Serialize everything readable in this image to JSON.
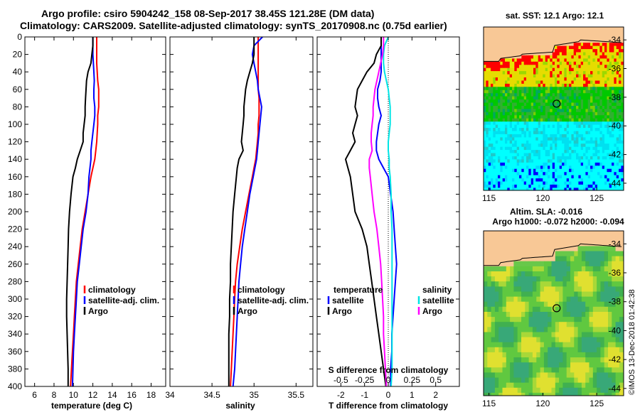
{
  "title": {
    "line1": "Argo profile: csiro 5904242_158 08-Sep-2017 38.45S 121.28E (DM data)",
    "line2": "Climatology: CARS2009. Satellite-adjusted climatology: synTS_20170908.nc (0.75d earlier)"
  },
  "colors": {
    "climatology": "#ff0000",
    "satellite": "#0000ff",
    "argo": "#000000",
    "sat_salinity": "#00e5e5",
    "argo_salinity": "#ff00ff"
  },
  "chart_data": [
    {
      "type": "line",
      "id": "temperature",
      "xlabel": "temperature (deg C)",
      "xlim": [
        5,
        19.5
      ],
      "xticks": [
        6,
        8,
        10,
        12,
        14,
        16,
        18
      ],
      "ylim": [
        400,
        0
      ],
      "yticks": [
        0,
        20,
        40,
        60,
        80,
        100,
        120,
        140,
        160,
        180,
        200,
        220,
        240,
        260,
        280,
        300,
        320,
        340,
        360,
        380,
        400
      ],
      "depth": [
        0,
        10,
        20,
        30,
        40,
        50,
        60,
        70,
        80,
        90,
        100,
        110,
        120,
        130,
        140,
        150,
        160,
        180,
        200,
        220,
        240,
        260,
        280,
        300,
        320,
        340,
        360,
        380,
        400
      ],
      "series": [
        {
          "name": "climatology",
          "color": "#ff0000",
          "values": [
            12.4,
            12.4,
            12.4,
            12.4,
            12.45,
            12.5,
            12.6,
            12.6,
            12.6,
            12.5,
            12.5,
            12.45,
            12.4,
            12.3,
            12.2,
            12.0,
            11.8,
            11.5,
            11.2,
            10.9,
            10.7,
            10.5,
            10.3,
            10.2,
            10.1,
            10.0,
            9.9,
            9.8,
            9.7
          ]
        },
        {
          "name": "satellite-adj. clim.",
          "color": "#0000ff",
          "values": [
            12.0,
            12.0,
            12.0,
            12.05,
            12.1,
            12.15,
            12.1,
            12.1,
            12.2,
            12.2,
            12.1,
            12.0,
            11.9,
            11.8,
            11.8,
            11.7,
            11.6,
            11.5,
            11.3,
            11.0,
            10.8,
            10.6,
            10.4,
            10.3,
            10.2,
            10.1,
            10.0,
            9.95,
            9.9
          ]
        },
        {
          "name": "Argo",
          "color": "#000000",
          "values": [
            12.0,
            12.0,
            11.9,
            11.8,
            11.5,
            11.35,
            11.3,
            11.25,
            11.2,
            11.2,
            11.1,
            11.0,
            11.0,
            10.7,
            10.4,
            10.2,
            9.95,
            9.75,
            9.6,
            9.5,
            9.45,
            9.4,
            9.35,
            9.3,
            9.3,
            9.35,
            9.4,
            9.45,
            9.45
          ]
        }
      ],
      "legend": [
        "climatology",
        "satellite-adj. clim.",
        "Argo"
      ]
    },
    {
      "type": "line",
      "id": "salinity",
      "xlabel": "salinity",
      "xlim": [
        34,
        35.7
      ],
      "xticks": [
        34,
        34.5,
        35,
        35.5
      ],
      "ylim": [
        400,
        0
      ],
      "depth": [
        0,
        10,
        20,
        30,
        40,
        50,
        60,
        70,
        80,
        90,
        100,
        110,
        120,
        130,
        140,
        150,
        160,
        180,
        200,
        220,
        240,
        260,
        280,
        300,
        320,
        340,
        360,
        380,
        400
      ],
      "series": [
        {
          "name": "climatology",
          "color": "#ff0000",
          "values": [
            35.05,
            35.05,
            35.05,
            35.05,
            35.05,
            35.05,
            35.05,
            35.06,
            35.06,
            35.06,
            35.05,
            35.05,
            35.04,
            35.03,
            35.02,
            35.0,
            34.98,
            34.94,
            34.9,
            34.86,
            34.83,
            34.8,
            34.78,
            34.77,
            34.76,
            34.75,
            34.74,
            34.73,
            34.72
          ]
        },
        {
          "name": "satellite-adj. clim.",
          "color": "#0000ff",
          "values": [
            35.1,
            35.0,
            34.98,
            35.0,
            35.02,
            35.04,
            35.05,
            35.07,
            35.09,
            35.08,
            35.07,
            35.06,
            35.05,
            35.04,
            35.03,
            35.01,
            34.99,
            34.95,
            34.92,
            34.89,
            34.86,
            34.84,
            34.82,
            34.81,
            34.8,
            34.79,
            34.78,
            34.77,
            34.75
          ]
        },
        {
          "name": "Argo",
          "color": "#000000",
          "values": [
            35.0,
            35.0,
            35.0,
            34.98,
            34.95,
            34.92,
            34.9,
            34.89,
            34.88,
            34.88,
            34.87,
            34.86,
            34.85,
            34.87,
            34.82,
            34.8,
            34.79,
            34.77,
            34.75,
            34.74,
            34.73,
            34.72,
            34.72,
            34.71,
            34.71,
            34.7,
            34.7,
            34.7,
            34.7
          ]
        }
      ],
      "legend": [
        "climatology",
        "satellite-adj. clim.",
        "Argo"
      ]
    },
    {
      "type": "line",
      "id": "difference",
      "xlabel": "T difference from climatology",
      "xlabel_top": "S difference from climatology",
      "xlim": [
        -3,
        3
      ],
      "xticks": [
        -2,
        -1,
        0,
        1,
        2
      ],
      "xticks_top": [
        -0.5,
        -0.25,
        0,
        0.25,
        0.5
      ],
      "ylim": [
        400,
        0
      ],
      "depth": [
        0,
        10,
        20,
        30,
        40,
        50,
        60,
        70,
        80,
        90,
        100,
        110,
        120,
        130,
        140,
        150,
        160,
        180,
        200,
        220,
        240,
        260,
        280,
        300,
        320,
        340,
        360,
        380,
        400
      ],
      "series": [
        {
          "name": "T satellite",
          "color": "#0000ff",
          "values": [
            -0.3,
            -0.3,
            -0.3,
            -0.3,
            -0.3,
            -0.35,
            -0.45,
            -0.45,
            -0.4,
            -0.3,
            -0.4,
            -0.45,
            -0.5,
            -0.5,
            -0.4,
            -0.2,
            0.0,
            0.1,
            0.2,
            0.25,
            0.3,
            0.35,
            0.3,
            0.25,
            0.2,
            0.15,
            0.15,
            0.1,
            0.1
          ]
        },
        {
          "name": "T Argo",
          "color": "#000000",
          "values": [
            -0.3,
            -0.3,
            -0.5,
            -0.6,
            -0.9,
            -1.1,
            -1.3,
            -1.35,
            -1.4,
            -1.3,
            -1.4,
            -1.5,
            -1.4,
            -1.6,
            -1.8,
            -1.7,
            -1.6,
            -1.5,
            -1.4,
            -1.1,
            -0.9,
            -0.8,
            -0.7,
            -0.6,
            -0.5,
            -0.4,
            -0.3,
            -0.2,
            -0.1
          ]
        },
        {
          "name": "S satellite",
          "color": "#00e5e5",
          "values": [
            0.0,
            -0.04,
            -0.05,
            -0.05,
            -0.04,
            -0.02,
            0.0,
            0.01,
            0.02,
            0.02,
            0.02,
            0.01,
            0.0,
            0.0,
            0.01,
            0.01,
            0.02,
            0.03,
            0.03,
            0.04,
            0.04,
            0.04,
            0.04,
            0.04,
            0.04,
            0.04,
            0.04,
            0.04,
            0.03
          ]
        },
        {
          "name": "S Argo",
          "color": "#ff00ff",
          "values": [
            -0.05,
            -0.05,
            -0.06,
            -0.08,
            -0.1,
            -0.12,
            -0.14,
            -0.15,
            -0.16,
            -0.16,
            -0.17,
            -0.18,
            -0.18,
            -0.17,
            -0.2,
            -0.2,
            -0.19,
            -0.17,
            -0.15,
            -0.12,
            -0.1,
            -0.08,
            -0.07,
            -0.06,
            -0.05,
            -0.05,
            -0.04,
            -0.03,
            -0.02
          ]
        }
      ],
      "legend_left": {
        "header": "temperature",
        "items": [
          "satellite",
          "Argo"
        ]
      },
      "legend_right": {
        "header": "salinity",
        "items": [
          "satellite",
          "Argo"
        ]
      }
    },
    {
      "type": "heatmap",
      "id": "sst-map",
      "title": "sat. SST: 12.1  Argo: 12.1",
      "xticks": [
        115,
        120,
        125
      ],
      "yticks": [
        -34,
        -36,
        -38,
        -40,
        -42,
        -44
      ],
      "xlim": [
        114.5,
        127.5
      ],
      "ylim": [
        -44.5,
        -33.1
      ],
      "argo_lon": 121.28,
      "argo_lat": -38.45
    },
    {
      "type": "heatmap",
      "id": "sla-map",
      "title1": "Altim. SLA: -0.016",
      "title2": "Argo h1000: -0.072 h2000: -0.094",
      "xticks": [
        115,
        120,
        125
      ],
      "yticks": [
        -34,
        -36,
        -38,
        -40,
        -42,
        -44
      ],
      "xlim": [
        114.5,
        127.5
      ],
      "ylim": [
        -44.5,
        -33.1
      ],
      "argo_lon": 121.28,
      "argo_lat": -38.45
    }
  ],
  "stamp": "©IMOS 13-Dec-2018 01:42:38"
}
